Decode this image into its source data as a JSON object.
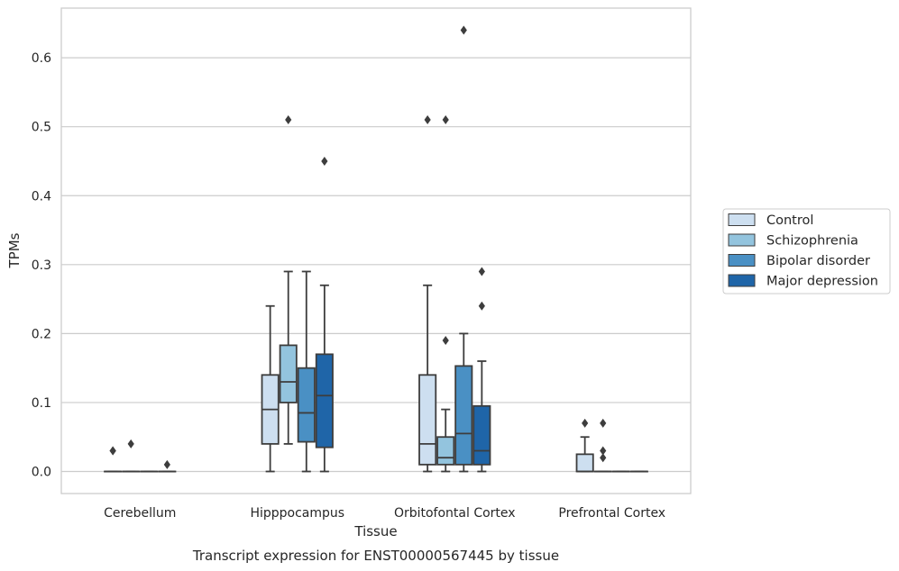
{
  "chart_data": {
    "type": "boxplot",
    "xlabel": "Tissue",
    "ylabel": "TPMs",
    "caption": "Transcript expression for ENST00000567445 by tissue",
    "ylim": [
      -0.032,
      0.672
    ],
    "yticks": [
      "0.0",
      "0.1",
      "0.2",
      "0.3",
      "0.4",
      "0.5",
      "0.6"
    ],
    "grid": "horizontal",
    "legend_position": "right",
    "categories": [
      "Cerebellum",
      "Hipppocampus",
      "Orbitofontal Cortex",
      "Prefrontal Cortex"
    ],
    "series": [
      {
        "name": "Control",
        "color": "#cddff0",
        "boxes": [
          {
            "min": 0,
            "q1": 0,
            "median": 0,
            "q3": 0,
            "max": 0,
            "outliers": [
              0.03,
              0.03
            ]
          },
          {
            "min": 0,
            "q1": 0.04,
            "median": 0.09,
            "q3": 0.14,
            "max": 0.24,
            "outliers": []
          },
          {
            "min": 0,
            "q1": 0.01,
            "median": 0.04,
            "q3": 0.14,
            "max": 0.27,
            "outliers": [
              0.51
            ]
          },
          {
            "min": 0,
            "q1": 0,
            "median": 0,
            "q3": 0.025,
            "max": 0.05,
            "outliers": [
              0.07
            ]
          }
        ]
      },
      {
        "name": "Schizophrenia",
        "color": "#93c4de",
        "boxes": [
          {
            "min": 0,
            "q1": 0,
            "median": 0,
            "q3": 0,
            "max": 0,
            "outliers": [
              0.04
            ]
          },
          {
            "min": 0.04,
            "q1": 0.1,
            "median": 0.13,
            "q3": 0.183,
            "max": 0.29,
            "outliers": [
              0.51
            ]
          },
          {
            "min": 0,
            "q1": 0.01,
            "median": 0.02,
            "q3": 0.05,
            "max": 0.09,
            "outliers": [
              0.19,
              0.51
            ]
          },
          {
            "min": 0,
            "q1": 0,
            "median": 0,
            "q3": 0,
            "max": 0,
            "outliers": [
              0.07,
              0.03,
              0.02
            ]
          }
        ]
      },
      {
        "name": "Bipolar disorder",
        "color": "#4a90c4",
        "boxes": [
          {
            "min": 0,
            "q1": 0,
            "median": 0,
            "q3": 0,
            "max": 0,
            "outliers": []
          },
          {
            "min": 0,
            "q1": 0.043,
            "median": 0.085,
            "q3": 0.15,
            "max": 0.29,
            "outliers": []
          },
          {
            "min": 0,
            "q1": 0.01,
            "median": 0.055,
            "q3": 0.153,
            "max": 0.2,
            "outliers": [
              0.64
            ]
          },
          {
            "min": 0,
            "q1": 0,
            "median": 0,
            "q3": 0,
            "max": 0,
            "outliers": []
          }
        ]
      },
      {
        "name": "Major depression",
        "color": "#1f65a8",
        "boxes": [
          {
            "min": 0,
            "q1": 0,
            "median": 0,
            "q3": 0,
            "max": 0,
            "outliers": [
              0.01
            ]
          },
          {
            "min": 0,
            "q1": 0.035,
            "median": 0.11,
            "q3": 0.17,
            "max": 0.27,
            "outliers": [
              0.45
            ]
          },
          {
            "min": 0,
            "q1": 0.01,
            "median": 0.03,
            "q3": 0.095,
            "max": 0.16,
            "outliers": [
              0.24,
              0.29
            ]
          },
          {
            "min": 0,
            "q1": 0,
            "median": 0,
            "q3": 0,
            "max": 0,
            "outliers": []
          }
        ]
      }
    ]
  }
}
